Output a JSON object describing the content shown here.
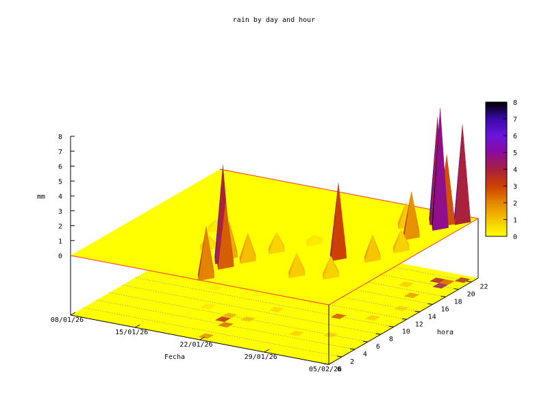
{
  "chart_data": {
    "type": "surface3d",
    "title": "rain by day and hour",
    "xlabel": "Fecha",
    "ylabel": "hora",
    "zlabel": "mm",
    "x_ticks": [
      "08/01/26",
      "15/01/26",
      "22/01/26",
      "29/01/26",
      "05/02/26"
    ],
    "y_ticks": [
      "0",
      "2",
      "4",
      "6",
      "8",
      "10",
      "12",
      "14",
      "16",
      "18",
      "20",
      "22"
    ],
    "z_ticks": [
      "0",
      "1",
      "2",
      "3",
      "4",
      "5",
      "6",
      "7",
      "8"
    ],
    "colorbar_ticks": [
      "0",
      "1",
      "2",
      "3",
      "4",
      "5",
      "6",
      "7",
      "8"
    ],
    "xlim": [
      0,
      28
    ],
    "ylim": [
      0,
      23
    ],
    "zlim": [
      0,
      8
    ],
    "palette": [
      "#ffff00",
      "#f5c400",
      "#e48600",
      "#cc4000",
      "#a51f3f",
      "#8c0aa0",
      "#6a14dc",
      "#3a0aa8",
      "#000000"
    ],
    "series": [
      {
        "points": [
          {
            "day": 13,
            "hour": 5,
            "mm": 6.4
          },
          {
            "day": 13,
            "hour": 6,
            "mm": 2.3
          },
          {
            "day": 14,
            "hour": 4,
            "mm": 4.3
          },
          {
            "day": 14,
            "hour": 1,
            "mm": 3.4
          },
          {
            "day": 15,
            "hour": 6,
            "mm": 1.8
          },
          {
            "day": 8,
            "hour": 11,
            "mm": 0.6
          },
          {
            "day": 10,
            "hour": 7,
            "mm": 0.8
          },
          {
            "day": 16,
            "hour": 9,
            "mm": 1.2
          },
          {
            "day": 22,
            "hour": 10,
            "mm": 5.0
          },
          {
            "day": 23,
            "hour": 19,
            "mm": 1.5
          },
          {
            "day": 25,
            "hour": 17,
            "mm": 3.0
          },
          {
            "day": 26,
            "hour": 20,
            "mm": 8.0
          },
          {
            "day": 26,
            "hour": 21,
            "mm": 4.6
          },
          {
            "day": 25,
            "hour": 21,
            "mm": 7.0
          },
          {
            "day": 27,
            "hour": 22,
            "mm": 6.5
          },
          {
            "day": 21,
            "hour": 5,
            "mm": 1.4
          },
          {
            "day": 24,
            "hour": 6,
            "mm": 1.3
          },
          {
            "day": 25,
            "hour": 11,
            "mm": 1.6
          },
          {
            "day": 26,
            "hour": 14,
            "mm": 1.3
          },
          {
            "day": 18,
            "hour": 12,
            "mm": 0.5
          }
        ]
      }
    ]
  }
}
